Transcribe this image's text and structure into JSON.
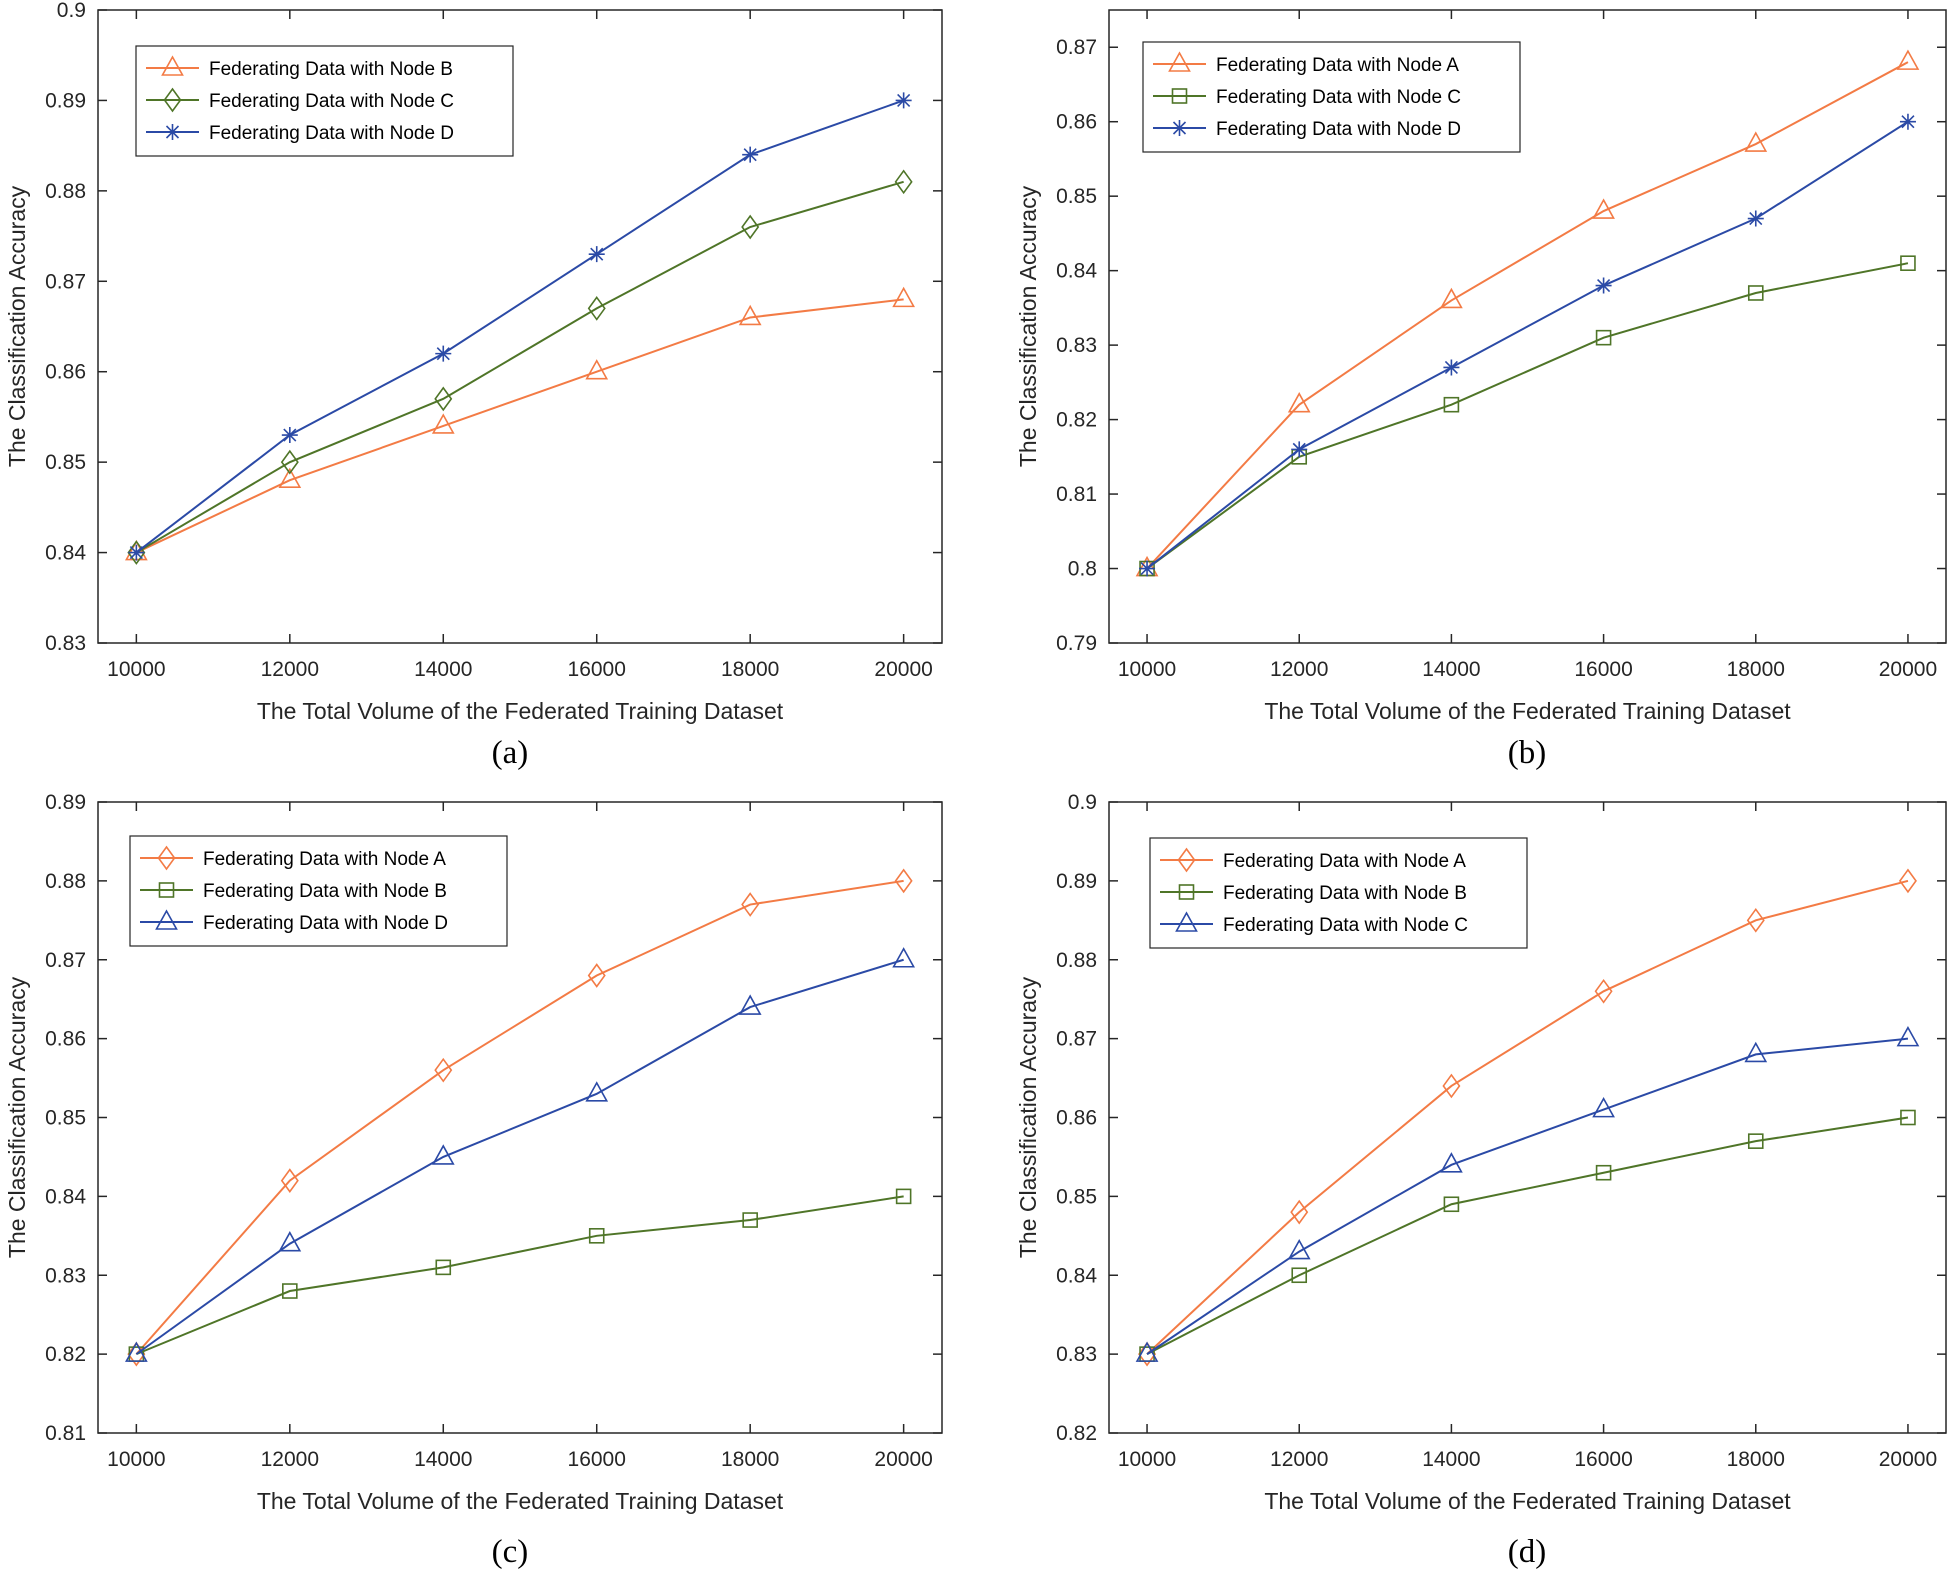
{
  "figure": {
    "panels": [
      {
        "label": "(a)"
      },
      {
        "label": "(b)"
      },
      {
        "label": "(c)"
      },
      {
        "label": "(d)"
      }
    ]
  },
  "chart_data": [
    {
      "type": "line",
      "panel": "(a)",
      "xlabel": "The Total Volume of the Federated Training Dataset",
      "ylabel": "The Classification Accuracy",
      "x": [
        10000,
        12000,
        14000,
        16000,
        18000,
        20000
      ],
      "xlim": [
        9500,
        20500
      ],
      "ylim": [
        0.83,
        0.9
      ],
      "xticks": [
        10000,
        12000,
        14000,
        16000,
        18000,
        20000
      ],
      "yticks": [
        0.83,
        0.84,
        0.85,
        0.86,
        0.87,
        0.88,
        0.89,
        0.9
      ],
      "ytick_labels": [
        "0.83",
        "0.84",
        "0.85",
        "0.86",
        "0.87",
        "0.88",
        "0.89",
        "0.9"
      ],
      "legend_position": "top-left",
      "series": [
        {
          "name": "Federating Data with Node B",
          "color": "#f37b45",
          "marker": "triangle",
          "values": [
            0.84,
            0.848,
            0.854,
            0.86,
            0.866,
            0.868
          ]
        },
        {
          "name": "Federating Data with Node C",
          "color": "#4f7528",
          "marker": "diamond",
          "values": [
            0.84,
            0.85,
            0.857,
            0.867,
            0.876,
            0.881
          ]
        },
        {
          "name": "Federating Data with Node D",
          "color": "#2b4aa6",
          "marker": "asterisk",
          "values": [
            0.84,
            0.853,
            0.862,
            0.873,
            0.884,
            0.89
          ]
        }
      ]
    },
    {
      "type": "line",
      "panel": "(b)",
      "xlabel": "The Total Volume of the Federated Training Dataset",
      "ylabel": "The Classification Accuracy",
      "x": [
        10000,
        12000,
        14000,
        16000,
        18000,
        20000
      ],
      "xlim": [
        9500,
        20500
      ],
      "ylim": [
        0.79,
        0.875
      ],
      "xticks": [
        10000,
        12000,
        14000,
        16000,
        18000,
        20000
      ],
      "yticks": [
        0.79,
        0.8,
        0.81,
        0.82,
        0.83,
        0.84,
        0.85,
        0.86,
        0.87
      ],
      "ytick_labels": [
        "0.79",
        "0.8",
        "0.81",
        "0.82",
        "0.83",
        "0.84",
        "0.85",
        "0.86",
        "0.87"
      ],
      "legend_position": "top-left",
      "series": [
        {
          "name": "Federating Data with Node A",
          "color": "#f37b45",
          "marker": "triangle",
          "values": [
            0.8,
            0.822,
            0.836,
            0.848,
            0.857,
            0.868
          ]
        },
        {
          "name": "Federating Data with Node C",
          "color": "#4f7528",
          "marker": "square",
          "values": [
            0.8,
            0.815,
            0.822,
            0.831,
            0.837,
            0.841
          ]
        },
        {
          "name": "Federating Data with Node D",
          "color": "#2b4aa6",
          "marker": "asterisk",
          "values": [
            0.8,
            0.816,
            0.827,
            0.838,
            0.847,
            0.86
          ]
        }
      ]
    },
    {
      "type": "line",
      "panel": "(c)",
      "xlabel": "The Total Volume of the Federated Training Dataset",
      "ylabel": "The Classification Accuracy",
      "x": [
        10000,
        12000,
        14000,
        16000,
        18000,
        20000
      ],
      "xlim": [
        9500,
        20500
      ],
      "ylim": [
        0.81,
        0.89
      ],
      "xticks": [
        10000,
        12000,
        14000,
        16000,
        18000,
        20000
      ],
      "yticks": [
        0.81,
        0.82,
        0.83,
        0.84,
        0.85,
        0.86,
        0.87,
        0.88,
        0.89
      ],
      "ytick_labels": [
        "0.81",
        "0.82",
        "0.83",
        "0.84",
        "0.85",
        "0.86",
        "0.87",
        "0.88",
        "0.89"
      ],
      "legend_position": "top-left",
      "series": [
        {
          "name": "Federating Data with Node A",
          "color": "#f37b45",
          "marker": "diamond",
          "values": [
            0.82,
            0.842,
            0.856,
            0.868,
            0.877,
            0.88
          ]
        },
        {
          "name": "Federating Data with Node B",
          "color": "#4f7528",
          "marker": "square",
          "values": [
            0.82,
            0.828,
            0.831,
            0.835,
            0.837,
            0.84
          ]
        },
        {
          "name": "Federating Data with Node D",
          "color": "#2b4aa6",
          "marker": "triangle",
          "values": [
            0.82,
            0.834,
            0.845,
            0.853,
            0.864,
            0.87
          ]
        }
      ]
    },
    {
      "type": "line",
      "panel": "(d)",
      "xlabel": "The Total Volume of the Federated Training Dataset",
      "ylabel": "The Classification Accuracy",
      "x": [
        10000,
        12000,
        14000,
        16000,
        18000,
        20000
      ],
      "xlim": [
        9500,
        20500
      ],
      "ylim": [
        0.82,
        0.9
      ],
      "xticks": [
        10000,
        12000,
        14000,
        16000,
        18000,
        20000
      ],
      "yticks": [
        0.82,
        0.83,
        0.84,
        0.85,
        0.86,
        0.87,
        0.88,
        0.89,
        0.9
      ],
      "ytick_labels": [
        "0.82",
        "0.83",
        "0.84",
        "0.85",
        "0.86",
        "0.87",
        "0.88",
        "0.89",
        "0.9"
      ],
      "legend_position": "top-left",
      "series": [
        {
          "name": "Federating Data with Node A",
          "color": "#f37b45",
          "marker": "diamond",
          "values": [
            0.83,
            0.848,
            0.864,
            0.876,
            0.885,
            0.89
          ]
        },
        {
          "name": "Federating Data with Node B",
          "color": "#4f7528",
          "marker": "square",
          "values": [
            0.83,
            0.84,
            0.849,
            0.853,
            0.857,
            0.86
          ]
        },
        {
          "name": "Federating Data with Node C",
          "color": "#2b4aa6",
          "marker": "triangle",
          "values": [
            0.83,
            0.843,
            0.854,
            0.861,
            0.868,
            0.87
          ]
        }
      ]
    }
  ]
}
